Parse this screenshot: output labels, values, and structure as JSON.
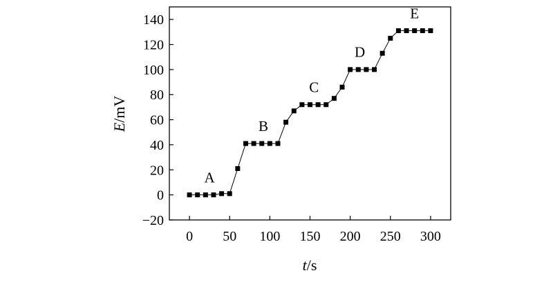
{
  "chart_data": {
    "type": "line",
    "title": "",
    "xlabel": {
      "var": "t",
      "unit": "/s"
    },
    "ylabel": {
      "var": "E",
      "unit": "/mV"
    },
    "xlim": [
      -25,
      325
    ],
    "ylim": [
      -20,
      150
    ],
    "xticks": [
      0,
      50,
      100,
      150,
      200,
      250,
      300
    ],
    "yticks": [
      -20,
      0,
      20,
      40,
      60,
      80,
      100,
      120,
      140
    ],
    "grid": false,
    "series": [
      {
        "marker": "square",
        "color": "#000000",
        "x": [
          0,
          10,
          20,
          30,
          40,
          50,
          60,
          70,
          80,
          90,
          100,
          110,
          120,
          130,
          140,
          150,
          160,
          170,
          180,
          190,
          200,
          210,
          220,
          230,
          240,
          250,
          260,
          270,
          280,
          290,
          300
        ],
        "y": [
          0,
          0,
          0,
          0,
          1,
          1,
          21,
          41,
          41,
          41,
          41,
          41,
          58,
          67,
          72,
          72,
          72,
          72,
          77,
          86,
          100,
          100,
          100,
          100,
          113,
          125,
          131,
          131,
          131,
          131,
          131
        ]
      }
    ],
    "annotations": [
      {
        "text": "A",
        "x": 25,
        "y": 10
      },
      {
        "text": "B",
        "x": 92,
        "y": 51
      },
      {
        "text": "C",
        "x": 155,
        "y": 82
      },
      {
        "text": "D",
        "x": 212,
        "y": 110
      },
      {
        "text": "E",
        "x": 280,
        "y": 141
      }
    ]
  }
}
